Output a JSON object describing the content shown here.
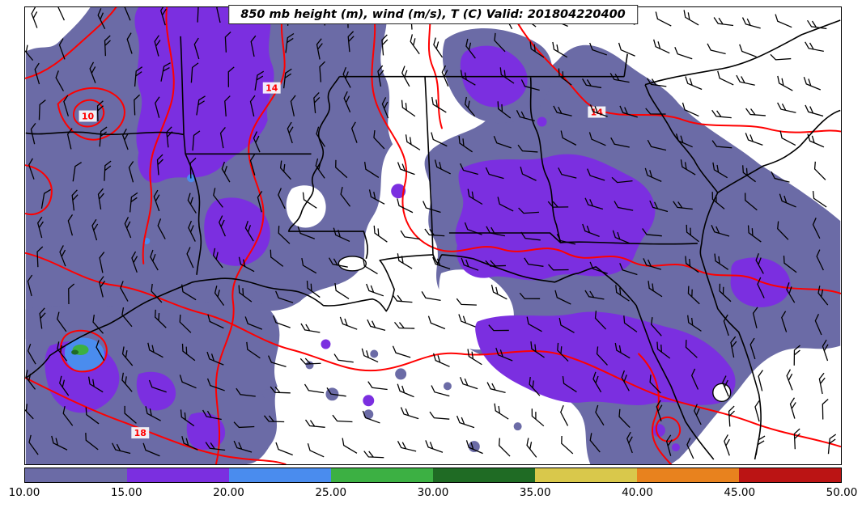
{
  "chart_data": {
    "type": "heatmap",
    "title": "850 mb height (m), wind (m/s), T (C) Valid: 201804220400",
    "valid_time": "201804220400",
    "variables": [
      "850 mb height (m)",
      "wind (m/s)",
      "T (C)"
    ],
    "region": "Southeastern United States: east Texas, Louisiana, Mississippi, Alabama, Georgia, South Carolina, Florida and Gulf of Mexico coast",
    "colorbar": {
      "orientation": "horizontal",
      "ticks": [
        "10.00",
        "15.00",
        "20.00",
        "25.00",
        "30.00",
        "35.00",
        "40.00",
        "45.00",
        "50.00"
      ],
      "tick_values": [
        10,
        15,
        20,
        25,
        30,
        35,
        40,
        45,
        50
      ],
      "segment_colors": [
        "#6b6ba6",
        "#7b2fe0",
        "#4a8cee",
        "#3cb043",
        "#1f6b24",
        "#d9c84b",
        "#e8821e",
        "#bb1414"
      ]
    },
    "contours": {
      "field": "T (C)",
      "color": "#ff0000",
      "label_chips": [
        "10",
        "14",
        "14",
        "18"
      ]
    },
    "wind_barbs": {
      "color": "#000000",
      "units": "m/s",
      "flow": "mostly southerly to southwesterly, 5-15 m/s"
    },
    "filled_field": {
      "name": "shaded field (colorbar 10-50)",
      "dominant_range": "10-15 (slate blue, widespread)",
      "secondary_range": "15-20 (purple patches inland and along Gulf coast)",
      "warm_spots": "20-30 (small blue/green spot near southwest Texas coast)"
    },
    "boundaries": [
      "state borders (black)",
      "Gulf of Mexico coastline",
      "Atlantic coastline",
      "Lake Pontchartrain",
      "Lake Okeechobee"
    ]
  }
}
